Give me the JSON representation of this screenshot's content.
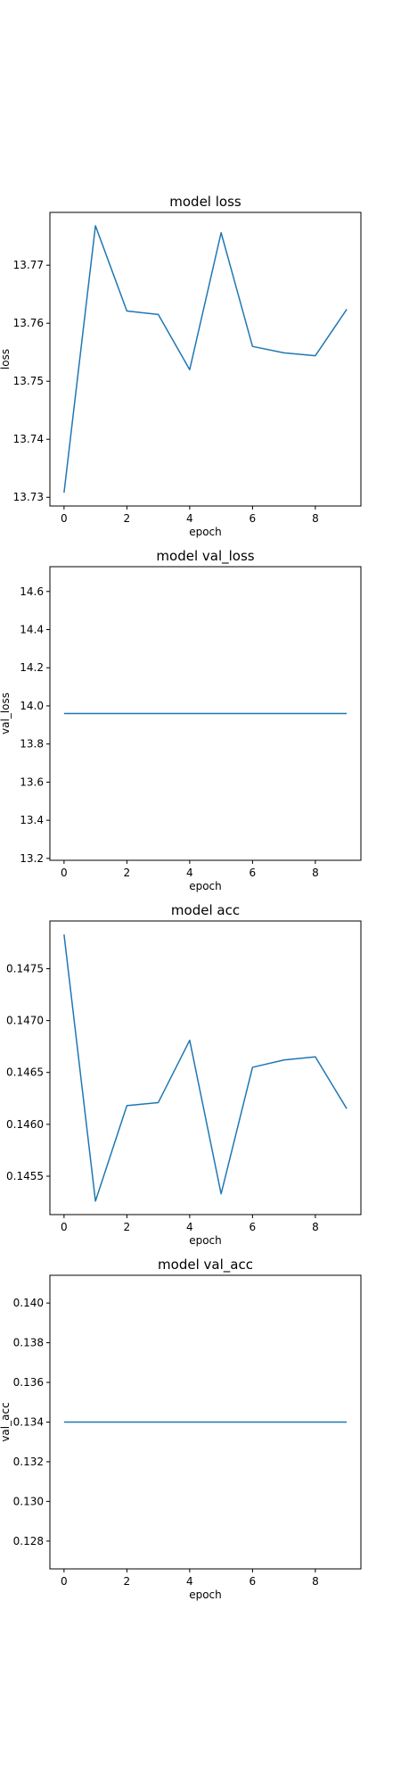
{
  "chart_data": [
    {
      "type": "line",
      "title": "model loss",
      "xlabel": "epoch",
      "ylabel": "loss",
      "x": [
        0,
        1,
        2,
        3,
        4,
        5,
        6,
        7,
        8,
        9
      ],
      "series": [
        {
          "values": [
            13.7308,
            13.7768,
            13.7621,
            13.7615,
            13.752,
            13.7756,
            13.756,
            13.7549,
            13.7544,
            13.7624
          ]
        }
      ],
      "xlim": [
        -0.45,
        9.45
      ],
      "ylim": [
        13.7285,
        13.7791
      ],
      "xticks": [
        0,
        2,
        4,
        6,
        8
      ],
      "yticks": [
        13.73,
        13.74,
        13.75,
        13.76,
        13.77
      ],
      "xtick_labels": [
        "0",
        "2",
        "4",
        "6",
        "8"
      ],
      "ytick_labels": [
        "13.73",
        "13.74",
        "13.75",
        "13.76",
        "13.77"
      ],
      "grid": false,
      "color": "#1f77b4"
    },
    {
      "type": "line",
      "title": "model val_loss",
      "xlabel": "epoch",
      "ylabel": "val_loss",
      "x": [
        0,
        1,
        2,
        3,
        4,
        5,
        6,
        7,
        8,
        9
      ],
      "series": [
        {
          "values": [
            13.96,
            13.96,
            13.96,
            13.96,
            13.96,
            13.96,
            13.96,
            13.96,
            13.96,
            13.96
          ]
        }
      ],
      "xlim": [
        -0.45,
        9.45
      ],
      "ylim": [
        13.19,
        14.73
      ],
      "xticks": [
        0,
        2,
        4,
        6,
        8
      ],
      "yticks": [
        13.2,
        13.4,
        13.6,
        13.8,
        14.0,
        14.2,
        14.4,
        14.6
      ],
      "xtick_labels": [
        "0",
        "2",
        "4",
        "6",
        "8"
      ],
      "ytick_labels": [
        "13.2",
        "13.4",
        "13.6",
        "13.8",
        "14.0",
        "14.2",
        "14.4",
        "14.6"
      ],
      "grid": false,
      "color": "#1f77b4"
    },
    {
      "type": "line",
      "title": "model acc",
      "xlabel": "epoch",
      "ylabel": "",
      "x": [
        0,
        1,
        2,
        3,
        4,
        5,
        6,
        7,
        8,
        9
      ],
      "series": [
        {
          "values": [
            0.14783,
            0.14526,
            0.14618,
            0.14621,
            0.14681,
            0.14533,
            0.14655,
            0.14662,
            0.14665,
            0.14615
          ]
        }
      ],
      "xlim": [
        -0.45,
        9.45
      ],
      "ylim": [
        0.14513,
        0.14796
      ],
      "xticks": [
        0,
        2,
        4,
        6,
        8
      ],
      "yticks": [
        0.1455,
        0.146,
        0.1465,
        0.147,
        0.1475
      ],
      "xtick_labels": [
        "0",
        "2",
        "4",
        "6",
        "8"
      ],
      "ytick_labels": [
        "0.1455",
        "0.1460",
        "0.1465",
        "0.1470",
        "0.1475"
      ],
      "grid": false,
      "color": "#1f77b4"
    },
    {
      "type": "line",
      "title": "model val_acc",
      "xlabel": "epoch",
      "ylabel": "val_acc",
      "x": [
        0,
        1,
        2,
        3,
        4,
        5,
        6,
        7,
        8,
        9
      ],
      "series": [
        {
          "values": [
            0.134,
            0.134,
            0.134,
            0.134,
            0.134,
            0.134,
            0.134,
            0.134,
            0.134,
            0.134
          ]
        }
      ],
      "xlim": [
        -0.45,
        9.45
      ],
      "ylim": [
        0.1266,
        0.1414
      ],
      "xticks": [
        0,
        2,
        4,
        6,
        8
      ],
      "yticks": [
        0.128,
        0.13,
        0.132,
        0.134,
        0.136,
        0.138,
        0.14
      ],
      "xtick_labels": [
        "0",
        "2",
        "4",
        "6",
        "8"
      ],
      "ytick_labels": [
        "0.128",
        "0.130",
        "0.132",
        "0.134",
        "0.136",
        "0.138",
        "0.140"
      ],
      "grid": false,
      "color": "#1f77b4"
    }
  ]
}
